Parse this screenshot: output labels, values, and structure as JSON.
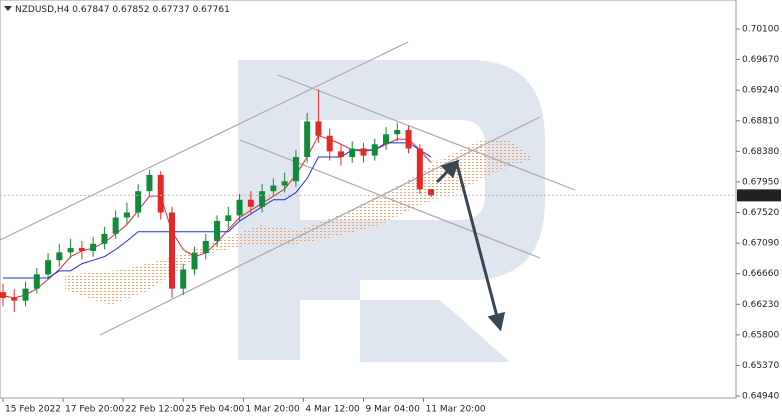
{
  "chart_data": {
    "type": "candlestick",
    "symbol": "NZDUSD,H4",
    "x": [
      0,
      3,
      6,
      9,
      12,
      15,
      18,
      21,
      24,
      27,
      30,
      33,
      36,
      39,
      42,
      45,
      48,
      51,
      54,
      57,
      60,
      63,
      66,
      69,
      72,
      75,
      78,
      81,
      84,
      87,
      90,
      93,
      96,
      99,
      102,
      105,
      108,
      111,
      114
    ],
    "open": [
      0.664,
      0.6632,
      0.6628,
      0.6645,
      0.6665,
      0.6685,
      0.6696,
      0.6702,
      0.6698,
      0.6708,
      0.6722,
      0.6745,
      0.6752,
      0.6782,
      0.6805,
      0.6752,
      0.6645,
      0.6672,
      0.6695,
      0.6712,
      0.674,
      0.6748,
      0.677,
      0.676,
      0.6782,
      0.679,
      0.6796,
      0.683,
      0.688,
      0.686,
      0.6838,
      0.683,
      0.6842,
      0.6832,
      0.6848,
      0.6862,
      0.6868,
      0.6842,
      0.67847
    ],
    "high": [
      0.6652,
      0.6644,
      0.6655,
      0.6674,
      0.6695,
      0.6708,
      0.6715,
      0.6712,
      0.6718,
      0.6732,
      0.6755,
      0.6766,
      0.6792,
      0.6812,
      0.681,
      0.676,
      0.668,
      0.6704,
      0.6722,
      0.6748,
      0.676,
      0.6778,
      0.6782,
      0.6792,
      0.68,
      0.6808,
      0.684,
      0.6892,
      0.6925,
      0.687,
      0.6848,
      0.6852,
      0.685,
      0.6856,
      0.6872,
      0.6878,
      0.6874,
      0.6848,
      0.67852
    ],
    "low": [
      0.662,
      0.6612,
      0.662,
      0.6638,
      0.6658,
      0.6676,
      0.6688,
      0.6686,
      0.669,
      0.67,
      0.6715,
      0.6736,
      0.6745,
      0.6774,
      0.6742,
      0.6632,
      0.6636,
      0.6664,
      0.6686,
      0.6705,
      0.673,
      0.674,
      0.675,
      0.6752,
      0.6774,
      0.678,
      0.6788,
      0.6822,
      0.685,
      0.6825,
      0.6818,
      0.6822,
      0.6822,
      0.6825,
      0.684,
      0.6852,
      0.6835,
      0.6778,
      0.67737
    ],
    "close": [
      0.6632,
      0.6628,
      0.6645,
      0.6665,
      0.6685,
      0.6696,
      0.6702,
      0.6698,
      0.6708,
      0.6722,
      0.6745,
      0.6752,
      0.6782,
      0.6805,
      0.6752,
      0.6645,
      0.6672,
      0.6695,
      0.6712,
      0.674,
      0.6748,
      0.677,
      0.676,
      0.6782,
      0.679,
      0.6796,
      0.683,
      0.688,
      0.686,
      0.6838,
      0.683,
      0.6842,
      0.6832,
      0.6848,
      0.6862,
      0.6868,
      0.6842,
      0.67847,
      0.67761
    ],
    "up_color": "#118a3a",
    "down_color": "#e32828",
    "series": [
      {
        "color": "#e32828",
        "values": [
          0.6635,
          0.6632,
          0.6636,
          0.6645,
          0.6658,
          0.6672,
          0.669,
          0.6698,
          0.6702,
          0.671,
          0.6722,
          0.6735,
          0.6755,
          0.6775,
          0.6775,
          0.6725,
          0.67,
          0.669,
          0.6695,
          0.671,
          0.6728,
          0.6745,
          0.6755,
          0.6765,
          0.6775,
          0.6785,
          0.6805,
          0.683,
          0.686,
          0.6855,
          0.6848,
          0.684,
          0.6838,
          0.684,
          0.6848,
          0.6855,
          0.6855,
          0.684,
          0.6822
        ]
      },
      {
        "color": "#1f2fd6",
        "values": [
          0.666,
          0.666,
          0.666,
          0.666,
          0.666,
          0.667,
          0.667,
          0.668,
          0.6685,
          0.669,
          0.67,
          0.6712,
          0.6725,
          0.6725,
          0.6725,
          0.6725,
          0.6725,
          0.6725,
          0.6725,
          0.6725,
          0.6725,
          0.674,
          0.675,
          0.676,
          0.677,
          0.677,
          0.678,
          0.68,
          0.683,
          0.683,
          0.683,
          0.684,
          0.684,
          0.684,
          0.685,
          0.685,
          0.685,
          0.684,
          0.683
        ]
      }
    ],
    "last_price": 0.67761,
    "xlim": [
      -0.8,
      195.2
    ],
    "xticks": [
      {
        "value": 0,
        "label": "15 Feb 2022"
      },
      {
        "value": 16,
        "label": "17 Feb 20:00"
      },
      {
        "value": 32,
        "label": "22 Feb 12:00"
      },
      {
        "value": 48,
        "label": "25 Feb 04:00"
      },
      {
        "value": 64,
        "label": "1 Mar 20:00"
      },
      {
        "value": 80,
        "label": "4 Mar 12:00"
      },
      {
        "value": 96,
        "label": "9 Mar 04:00"
      },
      {
        "value": 112,
        "label": "11 Mar 20:00"
      }
    ],
    "ylim": [
      0.64912,
      0.70508
    ],
    "yticks": [
      {
        "value": 0.701,
        "label": "0.70100"
      },
      {
        "value": 0.6967,
        "label": "0.69670"
      },
      {
        "value": 0.6924,
        "label": "0.69240"
      },
      {
        "value": 0.6881,
        "label": "0.68810"
      },
      {
        "value": 0.6838,
        "label": "0.68380"
      },
      {
        "value": 0.6795,
        "label": "0.67950"
      },
      {
        "value": 0.6752,
        "label": "0.67520"
      },
      {
        "value": 0.6709,
        "label": "0.67090"
      },
      {
        "value": 0.6666,
        "label": "0.66660"
      },
      {
        "value": 0.6623,
        "label": "0.66230"
      },
      {
        "value": 0.658,
        "label": "0.65800"
      },
      {
        "value": 0.6537,
        "label": "0.65370"
      },
      {
        "value": 0.6494,
        "label": "0.64940"
      }
    ]
  }
}
